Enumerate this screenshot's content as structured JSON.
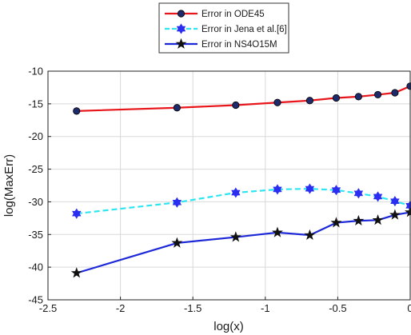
{
  "chart_data": {
    "type": "line",
    "title": "",
    "xlabel": "log(x)",
    "ylabel": "log(MaxErr)",
    "xlim": [
      -2.5,
      0
    ],
    "ylim": [
      -45,
      -10
    ],
    "xticks": [
      -2.5,
      -2,
      -1.5,
      -1,
      -0.5,
      0
    ],
    "xtick_labels": [
      "-2.5",
      "-2",
      "-1.5",
      "-1",
      "-0.5",
      "0"
    ],
    "yticks": [
      -45,
      -40,
      -35,
      -30,
      -25,
      -20,
      -15,
      -10
    ],
    "ytick_labels": [
      "-45",
      "-40",
      "-35",
      "-30",
      "-25",
      "-20",
      "-15",
      "-10"
    ],
    "grid": true,
    "legend_position": "top-center (outside)",
    "x": [
      -2.3026,
      -1.6094,
      -1.204,
      -0.9163,
      -0.6931,
      -0.5108,
      -0.3567,
      -0.2231,
      -0.1054,
      0
    ],
    "series": [
      {
        "name": "Error in ODE45",
        "color": "#e8161b",
        "marker_color": "#1f2a6b",
        "marker": "circle",
        "line_style": "solid",
        "values": [
          -16.1,
          -15.6,
          -15.2,
          -14.8,
          -14.5,
          -14.1,
          -13.9,
          -13.6,
          -13.3,
          -12.3
        ]
      },
      {
        "name": "Error in Jena et al.[6]",
        "color": "#2ee6f2",
        "marker_color": "#2b2ef0",
        "marker": "hexagram",
        "line_style": "dashed",
        "values": [
          -31.8,
          -30.1,
          -28.6,
          -28.1,
          -28.0,
          -28.2,
          -28.7,
          -29.2,
          -29.9,
          -30.6
        ]
      },
      {
        "name": "Error in NS4O15M",
        "color": "#1c28d8",
        "marker_color": "#111111",
        "marker": "star",
        "line_style": "solid",
        "values": [
          -40.9,
          -36.3,
          -35.4,
          -34.7,
          -35.1,
          -33.2,
          -32.9,
          -32.8,
          -32.0,
          -31.6
        ]
      }
    ]
  }
}
